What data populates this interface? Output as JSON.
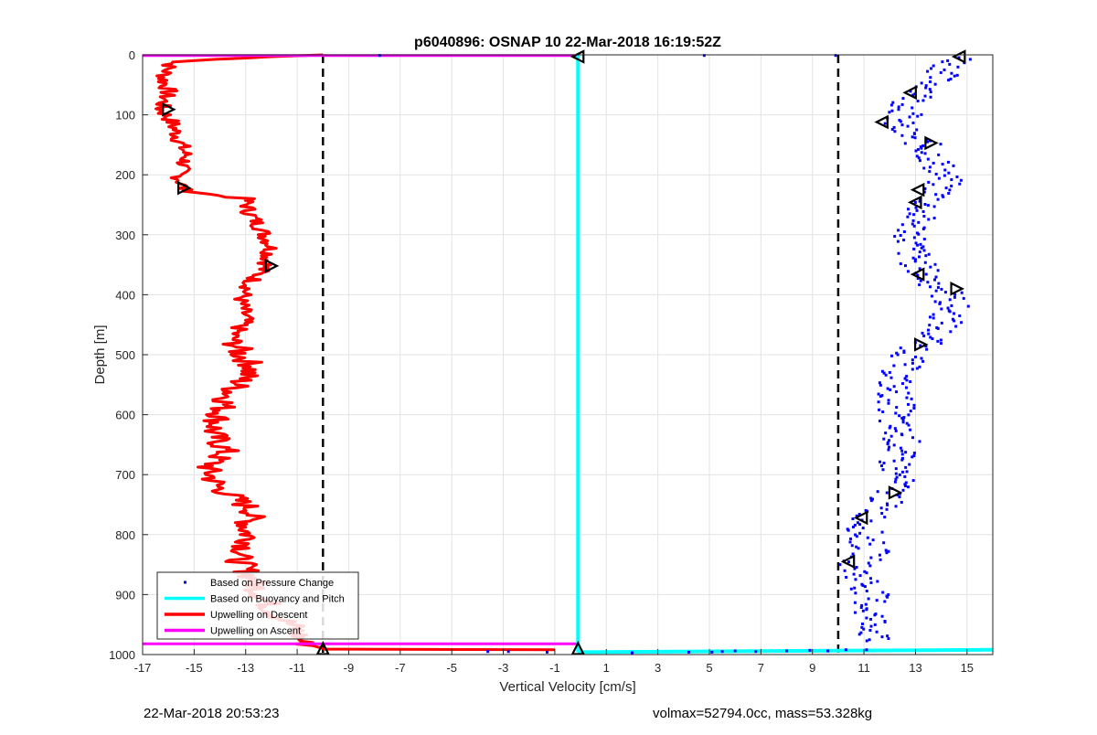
{
  "footer": {
    "timestamp": "22-Mar-2018 20:53:23",
    "mass_info": "volmax=52794.0cc, mass=53.328kg"
  },
  "chart_data": {
    "type": "line",
    "title": "p6040896: OSNAP 10 22-Mar-2018 16:19:52Z",
    "xlabel": "Vertical Velocity [cm/s]",
    "ylabel": "Depth [m]",
    "xlim": [
      -17,
      16
    ],
    "ylim": [
      0,
      1000
    ],
    "y_reversed": true,
    "grid": true,
    "x_ticks": [
      -17,
      -15,
      -13,
      -11,
      -9,
      -7,
      -5,
      -3,
      -1,
      1,
      3,
      5,
      7,
      9,
      11,
      13,
      15
    ],
    "y_ticks": [
      0,
      100,
      200,
      300,
      400,
      500,
      600,
      700,
      800,
      900,
      1000
    ],
    "legend": {
      "placement": "bottom-left",
      "entries": [
        {
          "label": "Based on Pressure Change",
          "color": "#0000ff",
          "style": "dot"
        },
        {
          "label": "Based on Buoyancy and Pitch",
          "color": "#00ffff",
          "style": "line"
        },
        {
          "label": "Upwelling on Descent",
          "color": "#ff0000",
          "style": "line"
        },
        {
          "label": "Upwelling on Ascent",
          "color": "#ff00ff",
          "style": "line"
        }
      ]
    },
    "threshold_lines": [
      {
        "x": -10,
        "color": "#000000",
        "style": "dashed"
      },
      {
        "x": 10,
        "color": "#000000",
        "style": "dashed"
      }
    ],
    "series": [
      {
        "name": "Upwelling on Descent",
        "color": "#ff0000",
        "points": [
          [
            -10,
            0
          ],
          [
            -12,
            3
          ],
          [
            -15.8,
            12
          ],
          [
            -16,
            20
          ],
          [
            -16.2,
            40
          ],
          [
            -16,
            60
          ],
          [
            -16.3,
            90
          ],
          [
            -15.9,
            110
          ],
          [
            -15.6,
            140
          ],
          [
            -15.3,
            170
          ],
          [
            -15.6,
            200
          ],
          [
            -15.4,
            225
          ],
          [
            -14.5,
            232
          ],
          [
            -13,
            240
          ],
          [
            -12.9,
            260
          ],
          [
            -12.4,
            290
          ],
          [
            -12,
            320
          ],
          [
            -12.2,
            350
          ],
          [
            -12.8,
            380
          ],
          [
            -13.2,
            410
          ],
          [
            -13,
            440
          ],
          [
            -13.5,
            470
          ],
          [
            -13.2,
            500
          ],
          [
            -12.7,
            520
          ],
          [
            -13.1,
            540
          ],
          [
            -13.7,
            570
          ],
          [
            -14,
            600
          ],
          [
            -14.3,
            630
          ],
          [
            -13.8,
            660
          ],
          [
            -14.5,
            690
          ],
          [
            -14.1,
            720
          ],
          [
            -13.4,
            740
          ],
          [
            -12.7,
            760
          ],
          [
            -13,
            790
          ],
          [
            -12.8,
            810
          ],
          [
            -13.3,
            840
          ],
          [
            -12.8,
            870
          ],
          [
            -12.4,
            900
          ],
          [
            -11.9,
            930
          ],
          [
            -11.1,
            955
          ],
          [
            -10.8,
            980
          ],
          [
            -10,
            990
          ]
        ]
      },
      {
        "name": "Upwelling on Descent (bottom)",
        "color": "#ff0000",
        "points": [
          [
            -10,
            991
          ],
          [
            -1,
            992
          ]
        ]
      },
      {
        "name": "Upwelling on Ascent",
        "color": "#ff00ff",
        "points": [
          [
            -17,
            1
          ],
          [
            -0.1,
            1
          ]
        ]
      },
      {
        "name": "Upwelling on Ascent (bottom)",
        "color": "#ff00ff",
        "points": [
          [
            -17,
            982
          ],
          [
            -0.1,
            982
          ]
        ]
      },
      {
        "name": "Based on Buoyancy and Pitch",
        "color": "#00ffff",
        "points": [
          [
            -0.1,
            0
          ],
          [
            -0.1,
            996
          ]
        ]
      },
      {
        "name": "Based on Buoyancy and Pitch (bottom)",
        "color": "#00ffff",
        "points": [
          [
            -0.1,
            996
          ],
          [
            16,
            992
          ]
        ]
      }
    ],
    "pressure_profile": [
      [
        14.8,
        5
      ],
      [
        14.2,
        25
      ],
      [
        13.8,
        40
      ],
      [
        13.5,
        60
      ],
      [
        12.8,
        80
      ],
      [
        12.6,
        100
      ],
      [
        12.2,
        115
      ],
      [
        12.5,
        130
      ],
      [
        13.2,
        145
      ],
      [
        13.6,
        165
      ],
      [
        13.9,
        185
      ],
      [
        14.1,
        210
      ],
      [
        13.8,
        235
      ],
      [
        13.2,
        260
      ],
      [
        12.9,
        290
      ],
      [
        12.8,
        320
      ],
      [
        13.1,
        350
      ],
      [
        13.5,
        375
      ],
      [
        14.2,
        395
      ],
      [
        14.4,
        420
      ],
      [
        14.1,
        450
      ],
      [
        13.5,
        475
      ],
      [
        12.8,
        500
      ],
      [
        12.4,
        525
      ],
      [
        12.1,
        555
      ],
      [
        12.3,
        585
      ],
      [
        12.1,
        615
      ],
      [
        12.5,
        645
      ],
      [
        12.2,
        675
      ],
      [
        12.3,
        705
      ],
      [
        12.1,
        730
      ],
      [
        11.6,
        755
      ],
      [
        11.1,
        780
      ],
      [
        11,
        805
      ],
      [
        11.3,
        830
      ],
      [
        10.6,
        855
      ],
      [
        11.1,
        880
      ],
      [
        11.3,
        905
      ],
      [
        11.2,
        930
      ],
      [
        11.5,
        955
      ],
      [
        11.2,
        980
      ]
    ],
    "surface_points": [
      [
        -7.8,
        1
      ],
      [
        4.8,
        1
      ],
      [
        9.9,
        1
      ]
    ],
    "bottom_points": [
      [
        -3.6,
        995
      ],
      [
        -2.8,
        995
      ],
      [
        -1.3,
        996
      ],
      [
        2,
        997
      ],
      [
        4.2,
        996
      ],
      [
        5.1,
        996
      ],
      [
        5.5,
        995
      ],
      [
        6,
        994
      ],
      [
        6.8,
        995
      ],
      [
        8,
        994
      ],
      [
        8.9,
        993
      ],
      [
        9.6,
        994
      ],
      [
        10.3,
        992
      ],
      [
        11.1,
        992
      ]
    ],
    "markers": [
      {
        "x": -0.1,
        "y": 3,
        "dir": "left"
      },
      {
        "x": 14.7,
        "y": 3,
        "dir": "left"
      },
      {
        "x": 12.8,
        "y": 63,
        "dir": "left"
      },
      {
        "x": -16,
        "y": 91,
        "dir": "right"
      },
      {
        "x": 11.7,
        "y": 112,
        "dir": "left"
      },
      {
        "x": 13.6,
        "y": 147,
        "dir": "right"
      },
      {
        "x": -15.4,
        "y": 222,
        "dir": "right"
      },
      {
        "x": 13.1,
        "y": 225,
        "dir": "left"
      },
      {
        "x": 13,
        "y": 246,
        "dir": "left"
      },
      {
        "x": -12,
        "y": 352,
        "dir": "right"
      },
      {
        "x": 13.1,
        "y": 366,
        "dir": "left"
      },
      {
        "x": 14.6,
        "y": 390,
        "dir": "right"
      },
      {
        "x": 13.2,
        "y": 483,
        "dir": "right"
      },
      {
        "x": 12.2,
        "y": 730,
        "dir": "right"
      },
      {
        "x": 10.9,
        "y": 772,
        "dir": "left"
      },
      {
        "x": 10.4,
        "y": 845,
        "dir": "left"
      },
      {
        "x": -10,
        "y": 990,
        "dir": "up"
      },
      {
        "x": -0.1,
        "y": 990,
        "dir": "up"
      }
    ]
  }
}
